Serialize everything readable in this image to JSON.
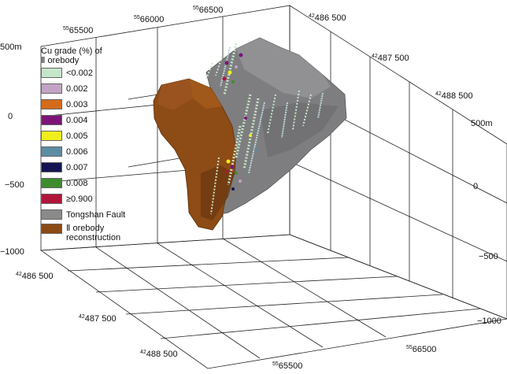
{
  "legend": {
    "title_line1": "Cu grade (%) of",
    "title_line2": "Ⅱ orebody",
    "items": [
      {
        "label": "<0.002",
        "color": "#c6e6c9"
      },
      {
        "label": "0.002",
        "color": "#c3a3c4"
      },
      {
        "label": "0.003",
        "color": "#d36b1c"
      },
      {
        "label": "0.004",
        "color": "#7a1577"
      },
      {
        "label": "0.005",
        "color": "#f0ee1a"
      },
      {
        "label": "0.006",
        "color": "#5c8da3"
      },
      {
        "label": "0.007",
        "color": "#141452"
      },
      {
        "label": "0.008",
        "color": "#3f8c2e"
      },
      {
        "label": "≥0.900",
        "color": "#b0163a"
      },
      {
        "label": "Tongshan Fault",
        "color": "#8a8a8a"
      },
      {
        "label": "Ⅱ orebody reconstruction",
        "label_line1": "Ⅱ orebody",
        "label_line2": "reconstruction",
        "color": "#8b4a14"
      }
    ]
  },
  "axes": {
    "top_x": [
      {
        "sup": "55",
        "main": "65500"
      },
      {
        "sup": "55",
        "main": "66000"
      },
      {
        "sup": "55",
        "main": "66500"
      }
    ],
    "top_y": [
      {
        "sup": "42",
        "main": "486 500"
      },
      {
        "sup": "42",
        "main": "487 500"
      },
      {
        "sup": "42",
        "main": "488 500"
      }
    ],
    "left_z": [
      "500m",
      "0",
      "−500",
      "−1000"
    ],
    "right_z": [
      "500m",
      "0",
      "−500",
      "−1000"
    ],
    "bottom_y": [
      {
        "sup": "42",
        "main": "486 500"
      },
      {
        "sup": "42",
        "main": "487 500"
      },
      {
        "sup": "42",
        "main": "488 500"
      }
    ],
    "bottom_x": [
      {
        "sup": "55",
        "main": "66500"
      },
      {
        "sup": "55",
        "main": "65500"
      }
    ]
  }
}
